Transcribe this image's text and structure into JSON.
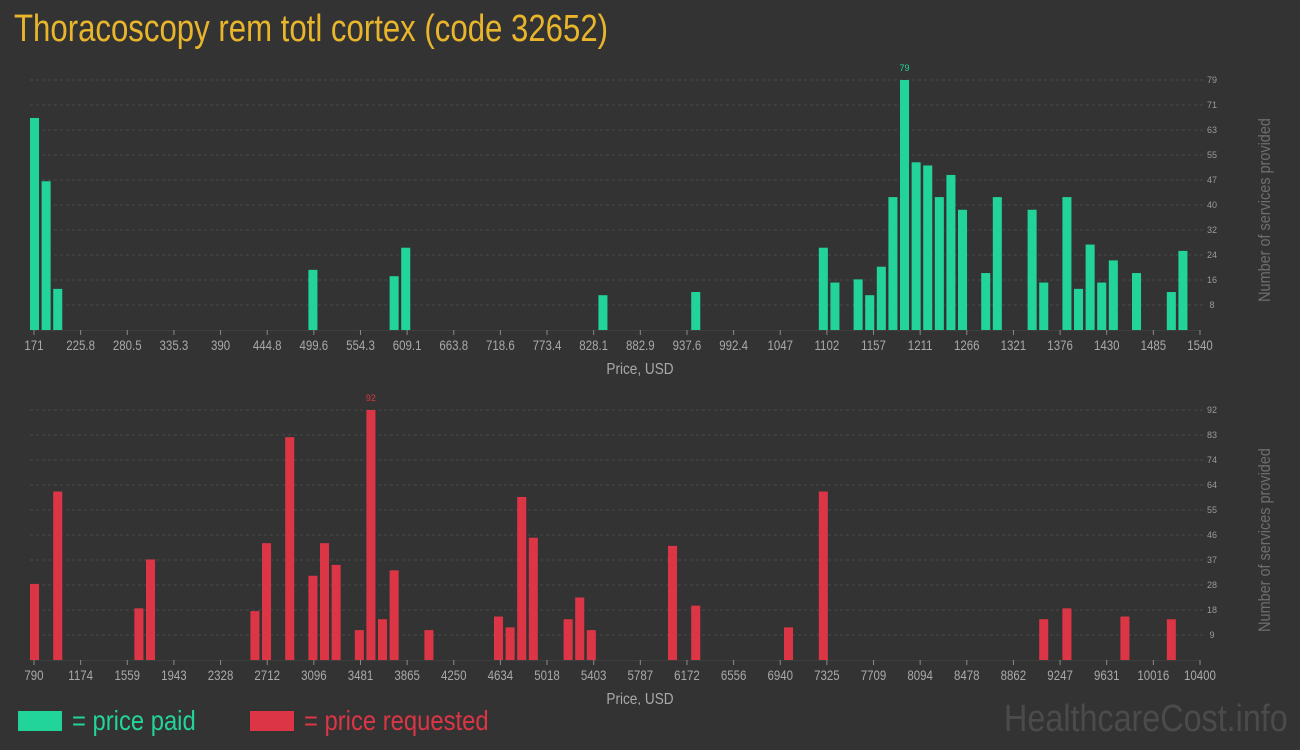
{
  "title": "Thoracoscopy rem totl cortex (code 32652)",
  "colors": {
    "paid": "#22d39a",
    "requested": "#dc3545",
    "title": "#e9b62b",
    "axis_text": "#a9a9a9"
  },
  "legend": {
    "paid_label": "= price paid",
    "requested_label": "= price requested"
  },
  "watermark": "HealthcareCost.info",
  "chart_data": [
    {
      "type": "bar",
      "name": "price paid",
      "xlabel": "Price, USD",
      "ylabel": "Number of services provided",
      "x_ticks": [
        "171",
        "225.8",
        "280.5",
        "335.3",
        "390",
        "444.8",
        "499.6",
        "554.3",
        "609.1",
        "663.8",
        "718.6",
        "773.4",
        "828.1",
        "882.9",
        "937.6",
        "992.4",
        "1047",
        "1102",
        "1157",
        "1211",
        "1266",
        "1321",
        "1376",
        "1430",
        "1485",
        "1540"
      ],
      "y_ticks": [
        "8",
        "16",
        "24",
        "32",
        "40",
        "47",
        "55",
        "63",
        "71",
        "79"
      ],
      "ylim": [
        0,
        79
      ],
      "peak_label": "79",
      "bars": [
        {
          "slot": 0,
          "value": 67
        },
        {
          "slot": 1,
          "value": 47
        },
        {
          "slot": 2,
          "value": 13
        },
        {
          "slot": 24,
          "value": 19
        },
        {
          "slot": 31,
          "value": 17
        },
        {
          "slot": 32,
          "value": 26
        },
        {
          "slot": 49,
          "value": 11
        },
        {
          "slot": 57,
          "value": 12
        },
        {
          "slot": 68,
          "value": 26
        },
        {
          "slot": 69,
          "value": 15
        },
        {
          "slot": 71,
          "value": 16
        },
        {
          "slot": 72,
          "value": 11
        },
        {
          "slot": 73,
          "value": 20
        },
        {
          "slot": 74,
          "value": 42
        },
        {
          "slot": 75,
          "value": 79
        },
        {
          "slot": 76,
          "value": 53
        },
        {
          "slot": 77,
          "value": 52
        },
        {
          "slot": 78,
          "value": 42
        },
        {
          "slot": 79,
          "value": 49
        },
        {
          "slot": 80,
          "value": 38
        },
        {
          "slot": 82,
          "value": 18
        },
        {
          "slot": 83,
          "value": 42
        },
        {
          "slot": 86,
          "value": 38
        },
        {
          "slot": 87,
          "value": 15
        },
        {
          "slot": 89,
          "value": 42
        },
        {
          "slot": 90,
          "value": 13
        },
        {
          "slot": 91,
          "value": 27
        },
        {
          "slot": 92,
          "value": 15
        },
        {
          "slot": 93,
          "value": 22
        },
        {
          "slot": 95,
          "value": 18
        },
        {
          "slot": 98,
          "value": 12
        },
        {
          "slot": 99,
          "value": 25
        }
      ]
    },
    {
      "type": "bar",
      "name": "price requested",
      "xlabel": "Price, USD",
      "ylabel": "Number of services provided",
      "x_ticks": [
        "790",
        "1174",
        "1559",
        "1943",
        "2328",
        "2712",
        "3096",
        "3481",
        "3865",
        "4250",
        "4634",
        "5018",
        "5403",
        "5787",
        "6172",
        "6556",
        "6940",
        "7325",
        "7709",
        "8094",
        "8478",
        "8862",
        "9247",
        "9631",
        "10016",
        "10400"
      ],
      "y_ticks": [
        "9",
        "18",
        "28",
        "37",
        "46",
        "55",
        "64",
        "74",
        "83",
        "92"
      ],
      "ylim": [
        0,
        92
      ],
      "peak_label": "92",
      "bars": [
        {
          "slot": 0,
          "value": 28
        },
        {
          "slot": 2,
          "value": 62
        },
        {
          "slot": 9,
          "value": 19
        },
        {
          "slot": 10,
          "value": 37
        },
        {
          "slot": 19,
          "value": 18
        },
        {
          "slot": 20,
          "value": 43
        },
        {
          "slot": 22,
          "value": 82
        },
        {
          "slot": 24,
          "value": 31
        },
        {
          "slot": 25,
          "value": 43
        },
        {
          "slot": 26,
          "value": 35
        },
        {
          "slot": 28,
          "value": 11
        },
        {
          "slot": 29,
          "value": 92
        },
        {
          "slot": 30,
          "value": 15
        },
        {
          "slot": 31,
          "value": 33
        },
        {
          "slot": 34,
          "value": 11
        },
        {
          "slot": 40,
          "value": 16
        },
        {
          "slot": 41,
          "value": 12
        },
        {
          "slot": 42,
          "value": 60
        },
        {
          "slot": 43,
          "value": 45
        },
        {
          "slot": 46,
          "value": 15
        },
        {
          "slot": 47,
          "value": 23
        },
        {
          "slot": 48,
          "value": 11
        },
        {
          "slot": 55,
          "value": 42
        },
        {
          "slot": 57,
          "value": 20
        },
        {
          "slot": 65,
          "value": 12
        },
        {
          "slot": 68,
          "value": 62
        },
        {
          "slot": 87,
          "value": 15
        },
        {
          "slot": 89,
          "value": 19
        },
        {
          "slot": 94,
          "value": 16
        },
        {
          "slot": 98,
          "value": 15
        }
      ]
    }
  ]
}
